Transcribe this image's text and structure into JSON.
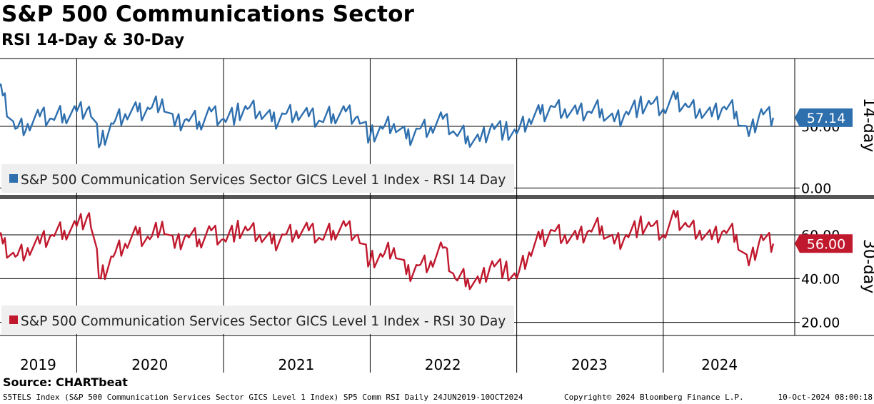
{
  "header": {
    "title": "S&P 500 Communications Sector",
    "subtitle": "RSI 14-Day & 30-Day"
  },
  "footer": {
    "source": "Source: CHARTbeat",
    "description": "S5TELS Index (S&P 500 Communication Services Sector GICS Level 1 Index) SP5 Comm RSI  Daily 24JUN2019-10OCT2024",
    "copyright": "Copyright© 2024 Bloomberg Finance L.P.",
    "timestamp": "10-Oct-2024 08:00:18"
  },
  "colors": {
    "rsi14": "#2e6fae",
    "rsi30": "#c0192e",
    "legend_bg": "#efefef"
  },
  "chart_data": [
    {
      "type": "line",
      "panel": "top",
      "side_label": "14-day",
      "legend": "S&P 500 Communication Services Sector GICS Level 1 Index - RSI 14 Day",
      "last_value_label": "57.14",
      "y_ticks": [
        "0.00",
        "50.00"
      ],
      "y_tick_values": [
        0,
        50
      ],
      "ylim": [
        -5,
        105
      ],
      "grid": true,
      "series": [
        {
          "name": "S&P 500 Communication Services Sector GICS Level 1 Index - RSI 14 Day",
          "x": [
            "2019-06",
            "2019-07",
            "2019-08",
            "2019-09",
            "2019-10",
            "2019-11",
            "2019-12",
            "2020-01",
            "2020-02",
            "2020-03",
            "2020-04",
            "2020-05",
            "2020-06",
            "2020-07",
            "2020-08",
            "2020-09",
            "2020-10",
            "2020-11",
            "2020-12",
            "2021-01",
            "2021-02",
            "2021-03",
            "2021-04",
            "2021-05",
            "2021-06",
            "2021-07",
            "2021-08",
            "2021-09",
            "2021-10",
            "2021-11",
            "2021-12",
            "2022-01",
            "2022-02",
            "2022-03",
            "2022-04",
            "2022-05",
            "2022-06",
            "2022-07",
            "2022-08",
            "2022-09",
            "2022-10",
            "2022-11",
            "2022-12",
            "2023-01",
            "2023-02",
            "2023-03",
            "2023-04",
            "2023-05",
            "2023-06",
            "2023-07",
            "2023-08",
            "2023-09",
            "2023-10",
            "2023-11",
            "2023-12",
            "2024-01",
            "2024-02",
            "2024-03",
            "2024-04",
            "2024-05",
            "2024-06",
            "2024-07",
            "2024-08",
            "2024-09",
            "2024-10"
          ],
          "values": [
            82,
            75,
            48,
            52,
            58,
            56,
            60,
            62,
            66,
            36,
            52,
            60,
            62,
            64,
            72,
            50,
            56,
            54,
            62,
            56,
            60,
            64,
            62,
            54,
            60,
            62,
            58,
            54,
            60,
            62,
            58,
            42,
            48,
            52,
            40,
            48,
            50,
            56,
            44,
            42,
            38,
            52,
            46,
            44,
            56,
            60,
            66,
            64,
            60,
            62,
            64,
            54,
            62,
            66,
            68,
            64,
            72,
            66,
            64,
            58,
            66,
            62,
            42,
            64,
            57
          ]
        }
      ]
    },
    {
      "type": "line",
      "panel": "bottom",
      "side_label": "30-day",
      "legend": "S&P 500 Communication Services Sector GICS Level 1 Index - RSI 30 Day",
      "last_value_label": "56.00",
      "y_ticks": [
        "20.00",
        "40.00",
        "60.00"
      ],
      "y_tick_values": [
        20,
        40,
        60
      ],
      "ylim": [
        14,
        76
      ],
      "grid": true,
      "series": [
        {
          "name": "S&P 500 Communication Services Sector GICS Level 1 Index - RSI 30 Day",
          "x": [
            "2019-06",
            "2019-07",
            "2019-08",
            "2019-09",
            "2019-10",
            "2019-11",
            "2019-12",
            "2020-01",
            "2020-02",
            "2020-03",
            "2020-04",
            "2020-05",
            "2020-06",
            "2020-07",
            "2020-08",
            "2020-09",
            "2020-10",
            "2020-11",
            "2020-12",
            "2021-01",
            "2021-02",
            "2021-03",
            "2021-04",
            "2021-05",
            "2021-06",
            "2021-07",
            "2021-08",
            "2021-09",
            "2021-10",
            "2021-11",
            "2021-12",
            "2022-01",
            "2022-02",
            "2022-03",
            "2022-04",
            "2022-05",
            "2022-06",
            "2022-07",
            "2022-08",
            "2022-09",
            "2022-10",
            "2022-11",
            "2022-12",
            "2023-01",
            "2023-02",
            "2023-03",
            "2023-04",
            "2023-05",
            "2023-06",
            "2023-07",
            "2023-08",
            "2023-09",
            "2023-10",
            "2023-11",
            "2023-12",
            "2024-01",
            "2024-02",
            "2024-03",
            "2024-04",
            "2024-05",
            "2024-06",
            "2024-07",
            "2024-08",
            "2024-09",
            "2024-10"
          ],
          "values": [
            58,
            56,
            50,
            54,
            56,
            60,
            62,
            64,
            70,
            40,
            50,
            56,
            60,
            58,
            66,
            54,
            60,
            58,
            62,
            58,
            62,
            62,
            60,
            56,
            60,
            62,
            62,
            58,
            62,
            64,
            60,
            48,
            50,
            54,
            42,
            46,
            48,
            54,
            40,
            40,
            38,
            48,
            44,
            40,
            52,
            58,
            62,
            60,
            58,
            62,
            64,
            56,
            60,
            64,
            64,
            60,
            68,
            64,
            62,
            58,
            62,
            60,
            46,
            60,
            56
          ]
        }
      ]
    }
  ],
  "x_axis": {
    "year_labels": [
      "2019",
      "2020",
      "2021",
      "2022",
      "2023",
      "2024"
    ]
  }
}
